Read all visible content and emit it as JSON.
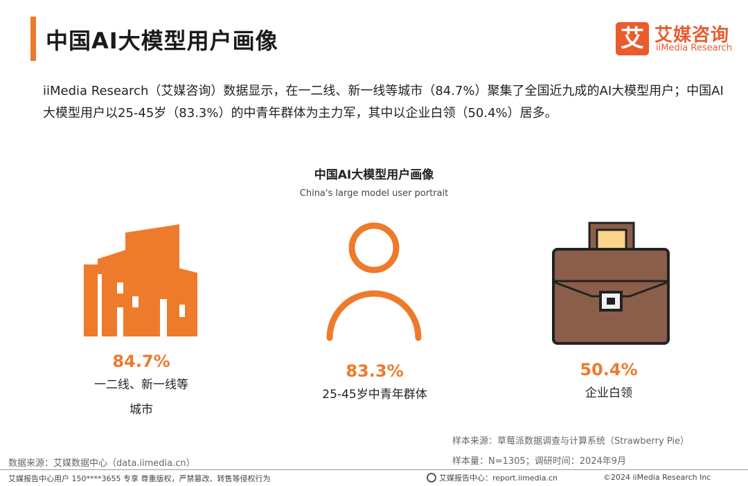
{
  "header": {
    "title": "中国AI大模型用户画像",
    "logo_mark": "艾",
    "logo_cn": "艾媒咨询",
    "logo_en": "iiMedia Research"
  },
  "description": "iiMedia Research（艾媒咨询）数据显示，在一二线、新一线等城市（84.7%）聚集了全国近九成的AI大模型用户；中国AI大模型用户以25-45岁（83.3%）的中青年群体为主力军，其中以企业白领（50.4%）居多。",
  "chart": {
    "title": "中国AI大模型用户画像",
    "subtitle": "China's large model user portrait"
  },
  "chart_data": {
    "type": "table",
    "title": "中国AI大模型用户画像",
    "subtitle": "China's large model user portrait",
    "items": [
      {
        "value": "84.7%",
        "label_line1": "一二线、新一线等",
        "label_line2": "城市",
        "icon": "city-buildings-icon"
      },
      {
        "value": "83.3%",
        "label_line1": "25-45岁中青年群体",
        "icon": "person-icon"
      },
      {
        "value": "50.4%",
        "label_line1": "企业白领",
        "icon": "briefcase-icon"
      }
    ]
  },
  "notes": {
    "sample_source": "样本来源：草莓派数据调查与计算系统（Strawberry Pie）",
    "sample_size": "样本量：N=1305；调研时间：2024年9月",
    "data_source": "数据来源：艾媒数据中心（data.iimedia.cn）"
  },
  "footer": {
    "left": "艾媒报告中心用户 150****3655 专享 尊重版权，严禁篡改、转售等侵权行为",
    "mid": "艾媒报告中心：report.iimedia.cn",
    "right": "©2024 iiMedia Research Inc"
  },
  "colors": {
    "accent": "#ee7a2c",
    "brand": "#ea5b2d",
    "briefcase": "#8b5e4a"
  }
}
